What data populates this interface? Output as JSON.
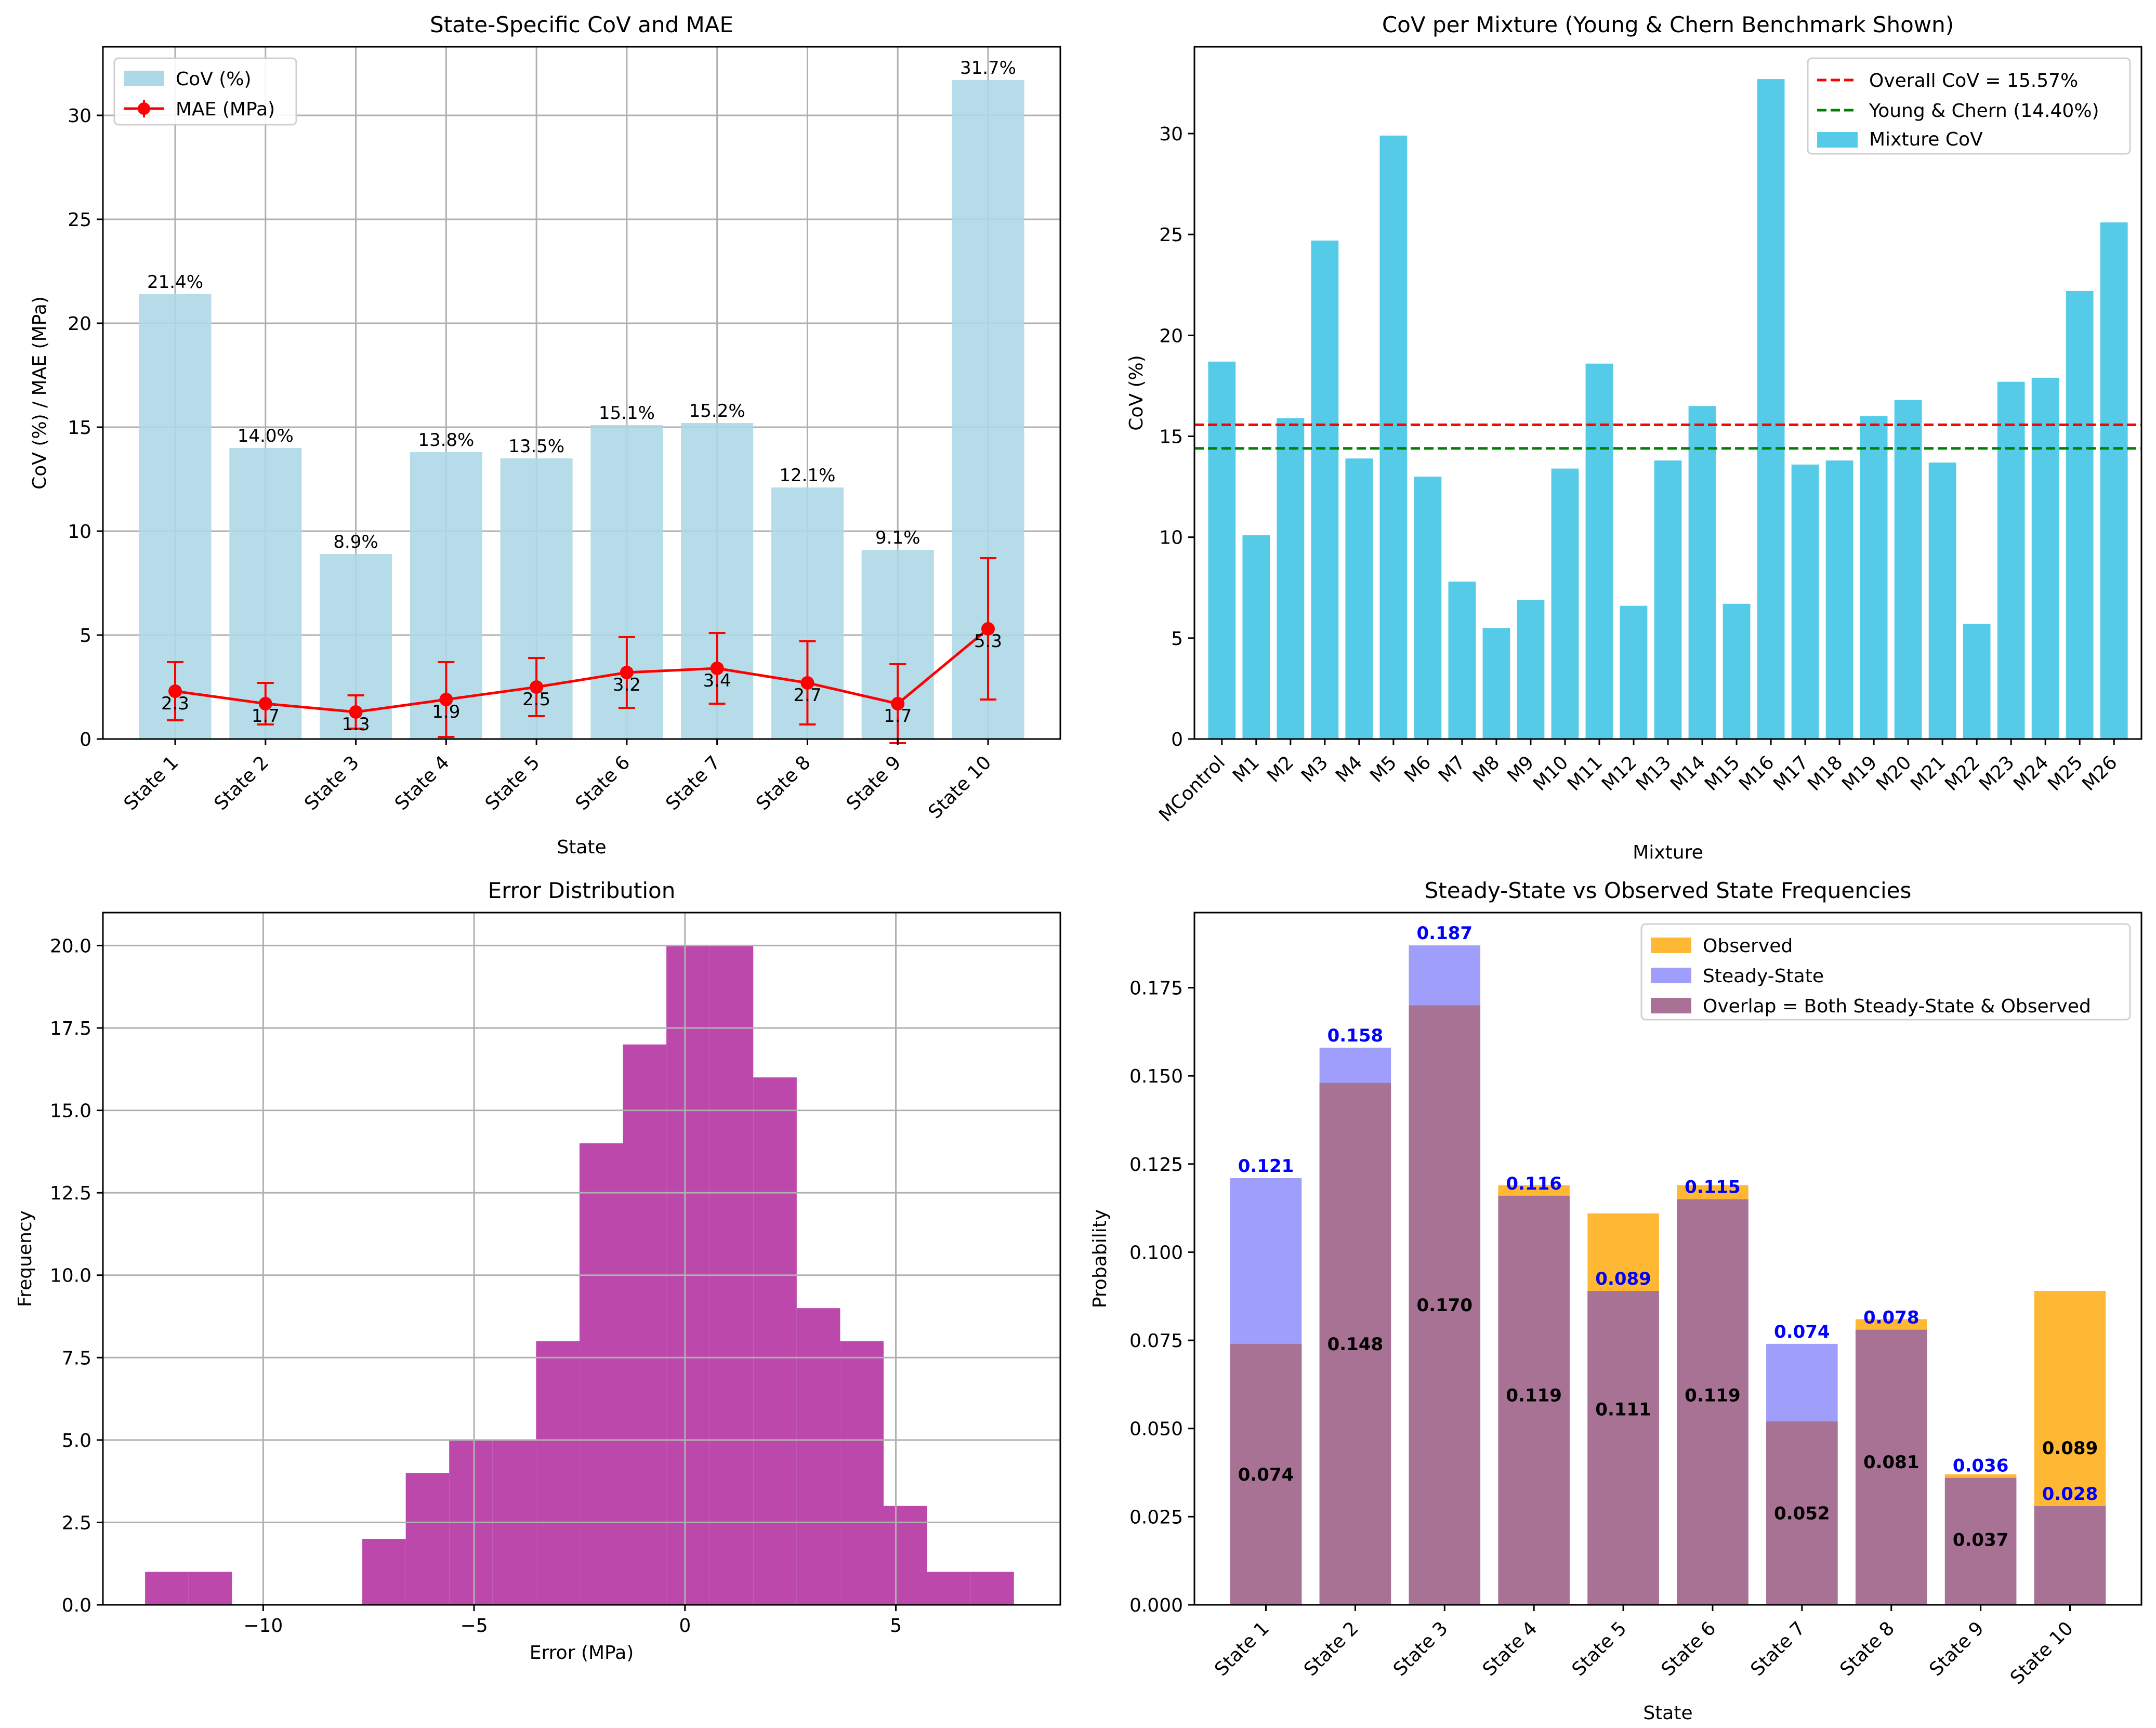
{
  "chart_data": [
    {
      "type": "bar",
      "title": "State-Specific CoV and MAE",
      "xlabel": "State",
      "ylabel": "CoV (%) / MAE (MPa)",
      "ylim": [
        0,
        33.3
      ],
      "yticks": [
        0,
        5,
        10,
        15,
        20,
        25,
        30
      ],
      "categories": [
        "State 1",
        "State 2",
        "State 3",
        "State 4",
        "State 5",
        "State 6",
        "State 7",
        "State 8",
        "State 9",
        "State 10"
      ],
      "series": [
        {
          "name": "CoV (%)",
          "kind": "bar",
          "color": "#add8e6",
          "values": [
            21.4,
            14.0,
            8.9,
            13.8,
            13.5,
            15.1,
            15.2,
            12.1,
            9.1,
            31.7
          ],
          "labels": [
            "21.4%",
            "14.0%",
            "8.9%",
            "13.8%",
            "13.5%",
            "15.1%",
            "15.2%",
            "12.1%",
            "9.1%",
            "31.7%"
          ]
        },
        {
          "name": "MAE (MPa)",
          "kind": "line-errorbar",
          "color": "#ff0000",
          "values": [
            2.3,
            1.7,
            1.3,
            1.9,
            2.5,
            3.2,
            3.4,
            2.7,
            1.7,
            5.3
          ],
          "errors": [
            1.4,
            1.0,
            0.8,
            1.8,
            1.4,
            1.7,
            1.7,
            2.0,
            1.9,
            3.4
          ],
          "labels": [
            "2.3",
            "1.7",
            "1.3",
            "1.9",
            "2.5",
            "3.2",
            "3.4",
            "2.7",
            "1.7",
            "5.3"
          ]
        }
      ],
      "legend_position": "upper-left",
      "grid": true
    },
    {
      "type": "bar",
      "title": "CoV per Mixture (Young & Chern Benchmark Shown)",
      "xlabel": "Mixture",
      "ylabel": "CoV (%)",
      "ylim": [
        0,
        34.3
      ],
      "yticks": [
        0,
        5,
        10,
        15,
        20,
        25,
        30
      ],
      "categories": [
        "MControl",
        "M1",
        "M2",
        "M3",
        "M4",
        "M5",
        "M6",
        "M7",
        "M8",
        "M9",
        "M10",
        "M11",
        "M12",
        "M13",
        "M14",
        "M15",
        "M16",
        "M17",
        "M18",
        "M19",
        "M20",
        "M21",
        "M22",
        "M23",
        "M24",
        "M25",
        "M26"
      ],
      "series": [
        {
          "name": "Mixture CoV",
          "kind": "bar",
          "color": "#56cbe8",
          "values": [
            18.7,
            10.1,
            15.9,
            24.7,
            13.9,
            29.9,
            13.0,
            7.8,
            5.5,
            6.9,
            13.4,
            18.6,
            6.6,
            13.8,
            16.5,
            6.7,
            32.7,
            13.6,
            13.8,
            16.0,
            16.8,
            13.7,
            5.7,
            17.7,
            17.9,
            22.2,
            25.6
          ]
        }
      ],
      "reference_lines": [
        {
          "name": "Overall CoV = 15.57%",
          "value": 15.57,
          "color": "#ff0000"
        },
        {
          "name": "Young & Chern (14.40%)",
          "value": 14.4,
          "color": "#008000"
        }
      ],
      "legend_position": "upper-right",
      "grid": false
    },
    {
      "type": "bar",
      "title": "Error Distribution",
      "xlabel": "Error (MPa)",
      "ylabel": "Frequency",
      "xlim": [
        -13.8,
        8.9
      ],
      "ylim": [
        0,
        21
      ],
      "xticks": [
        -10,
        -5,
        0,
        5
      ],
      "xtick_labels": [
        "−10",
        "−5",
        "0",
        "5"
      ],
      "yticks": [
        0,
        2.5,
        5.0,
        7.5,
        10.0,
        12.5,
        15.0,
        17.5,
        20.0
      ],
      "ytick_labels": [
        "0.0",
        "2.5",
        "5.0",
        "7.5",
        "10.0",
        "12.5",
        "15.0",
        "17.5",
        "20.0"
      ],
      "bin_edges": [
        -12.8,
        -11.77,
        -10.74,
        -9.71,
        -8.68,
        -7.65,
        -6.62,
        -5.59,
        -4.56,
        -3.53,
        -2.5,
        -1.47,
        -0.44,
        0.59,
        1.62,
        2.65,
        3.68,
        4.71,
        5.74,
        6.77,
        7.8
      ],
      "counts": [
        1,
        1,
        0,
        0,
        0,
        2,
        4,
        5,
        5,
        8,
        14,
        17,
        20,
        20,
        16,
        9,
        8,
        3,
        1,
        1
      ],
      "color": "#bb48aa",
      "grid": true
    },
    {
      "type": "bar",
      "title": "Steady-State vs Observed State Frequencies",
      "xlabel": "State",
      "ylabel": "Probability",
      "ylim": [
        0,
        0.1963
      ],
      "yticks": [
        0.0,
        0.025,
        0.05,
        0.075,
        0.1,
        0.125,
        0.15,
        0.175
      ],
      "ytick_labels": [
        "0.000",
        "0.025",
        "0.050",
        "0.075",
        "0.100",
        "0.125",
        "0.150",
        "0.175"
      ],
      "categories": [
        "State 1",
        "State 2",
        "State 3",
        "State 4",
        "State 5",
        "State 6",
        "State 7",
        "State 8",
        "State 9",
        "State 10"
      ],
      "series": [
        {
          "name": "Observed",
          "color": "#ffb833",
          "values": [
            0.074,
            0.148,
            0.17,
            0.119,
            0.111,
            0.119,
            0.052,
            0.081,
            0.037,
            0.089
          ],
          "labels": [
            "0.074",
            "0.148",
            "0.170",
            "0.119",
            "0.111",
            "0.119",
            "0.052",
            "0.081",
            "0.037",
            "0.089"
          ]
        },
        {
          "name": "Steady-State",
          "color": "#9f9efb",
          "values": [
            0.121,
            0.158,
            0.187,
            0.116,
            0.089,
            0.115,
            0.074,
            0.078,
            0.036,
            0.028
          ],
          "labels": [
            "0.121",
            "0.158",
            "0.187",
            "0.116",
            "0.089",
            "0.115",
            "0.074",
            "0.078",
            "0.036",
            "0.028"
          ]
        }
      ],
      "overlap_name": "Overlap = Both Steady-State & Observed",
      "overlap_color": "#a87294",
      "legend_position": "upper-right",
      "grid": false
    }
  ]
}
